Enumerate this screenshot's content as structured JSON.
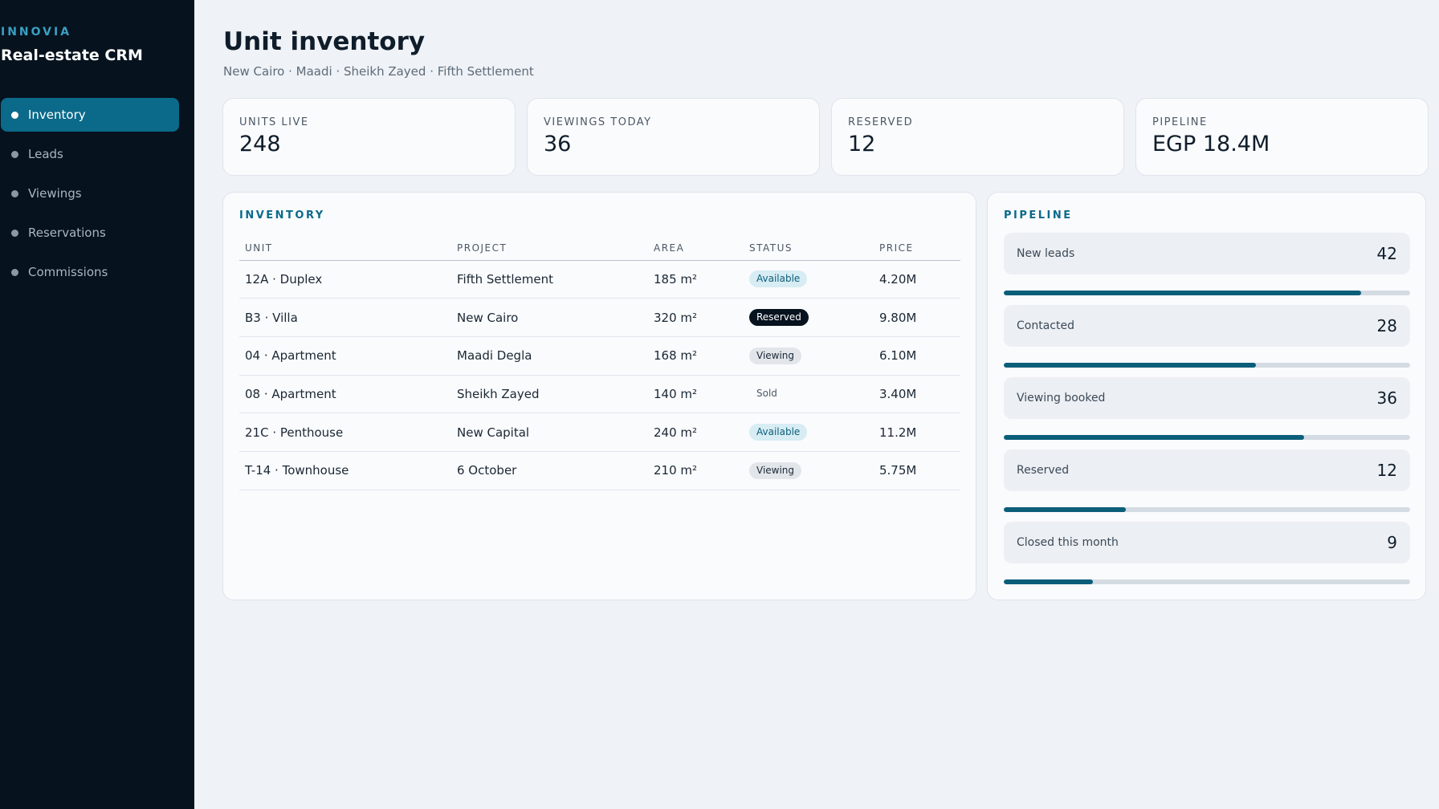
{
  "sidebar": {
    "kicker": "INNOVIA",
    "title": "Real-estate CRM",
    "items": [
      {
        "label": "Inventory",
        "active": true
      },
      {
        "label": "Leads"
      },
      {
        "label": "Viewings"
      },
      {
        "label": "Reservations"
      },
      {
        "label": "Commissions"
      }
    ]
  },
  "header": {
    "title": "Unit inventory",
    "subtitle": "New Cairo · Maadi · Sheikh Zayed · Fifth Settlement"
  },
  "kpis": [
    {
      "label": "UNITS LIVE",
      "value": "248"
    },
    {
      "label": "VIEWINGS TODAY",
      "value": "36"
    },
    {
      "label": "RESERVED",
      "value": "12"
    },
    {
      "label": "PIPELINE",
      "value": "EGP 18.4M"
    }
  ],
  "inventory": {
    "title": "INVENTORY",
    "columns": [
      "UNIT",
      "PROJECT",
      "AREA",
      "STATUS",
      "PRICE"
    ],
    "rows": [
      {
        "unit": "12A · Duplex",
        "project": "Fifth Settlement",
        "area": "185 m²",
        "status": "Available",
        "price": "4.20M"
      },
      {
        "unit": "B3 · Villa",
        "project": "New Cairo",
        "area": "320 m²",
        "status": "Reserved",
        "price": "9.80M"
      },
      {
        "unit": "04 · Apartment",
        "project": "Maadi Degla",
        "area": "168 m²",
        "status": "Viewing",
        "price": "6.10M"
      },
      {
        "unit": "08 · Apartment",
        "project": "Sheikh Zayed",
        "area": "140 m²",
        "status": "Sold",
        "price": "3.40M"
      },
      {
        "unit": "21C · Penthouse",
        "project": "New Capital",
        "area": "240 m²",
        "status": "Available",
        "price": "11.2M"
      },
      {
        "unit": "T-14 · Townhouse",
        "project": "6 October",
        "area": "210 m²",
        "status": "Viewing",
        "price": "5.75M"
      }
    ]
  },
  "pipeline": {
    "title": "PIPELINE",
    "stages": [
      {
        "label": "New leads",
        "count": "42",
        "progress": 0.88
      },
      {
        "label": "Contacted",
        "count": "28",
        "progress": 0.62
      },
      {
        "label": "Viewing booked",
        "count": "36",
        "progress": 0.74
      },
      {
        "label": "Reserved",
        "count": "12",
        "progress": 0.3
      },
      {
        "label": "Closed this month",
        "count": "9",
        "progress": 0.22
      }
    ]
  },
  "colors": {
    "sidebar_bg": "#06121e",
    "accent": "#0b6a8a",
    "page_bg": "#eff2f6"
  }
}
